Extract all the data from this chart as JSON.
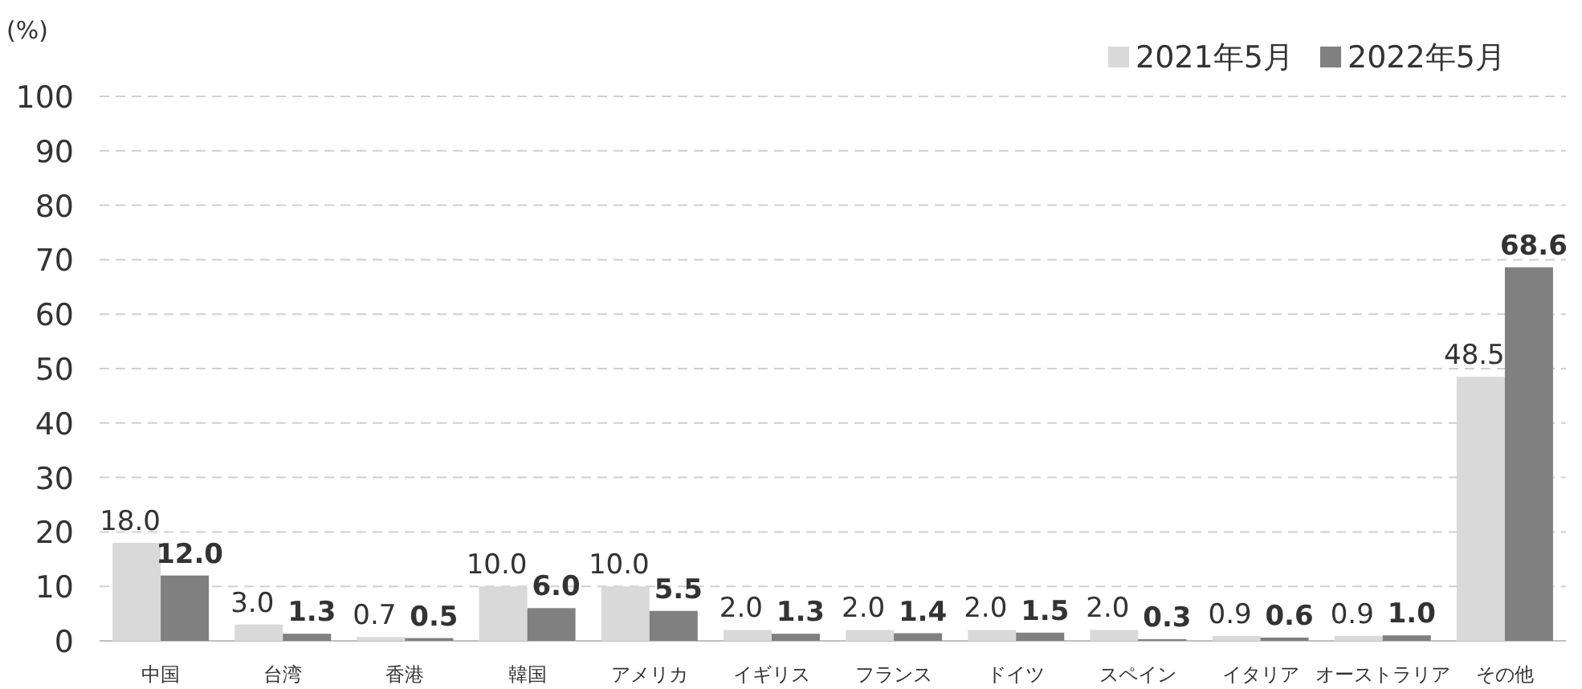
{
  "chart_data": {
    "type": "bar",
    "ylabel": "(%)",
    "categories": [
      "中国",
      "台湾",
      "香港",
      "韓国",
      "アメリカ",
      "イギリス",
      "フランス",
      "ドイツ",
      "スペイン",
      "イタリア",
      "オーストラリア",
      "その他"
    ],
    "series": [
      {
        "name": "2021年5月",
        "color": "#d9d9d9",
        "values": [
          18.0,
          3.0,
          0.7,
          10.0,
          10.0,
          2.0,
          2.0,
          2.0,
          2.0,
          0.9,
          0.9,
          48.5
        ],
        "value_labels": [
          "18.0",
          "3.0",
          "0.7",
          "10.0",
          "10.0",
          "2.0",
          "2.0",
          "2.0",
          "2.0",
          "0.9",
          "0.9",
          "48.5"
        ]
      },
      {
        "name": "2022年5月",
        "color": "#808080",
        "values": [
          12.0,
          1.3,
          0.5,
          6.0,
          5.5,
          1.3,
          1.4,
          1.5,
          0.3,
          0.6,
          1.0,
          68.6
        ],
        "value_labels": [
          "**12.0**",
          "**1.3**",
          "**0.5**",
          "**6.0**",
          "**5.5**",
          "**1.3**",
          "**1.4**",
          "**1.5**",
          "**0.3**",
          "**0.6**",
          "**1.0**",
          "**68.6**"
        ]
      }
    ],
    "ylim": [
      0,
      100
    ],
    "yticks": [
      0,
      10,
      20,
      30,
      40,
      50,
      60,
      70,
      80,
      90,
      100
    ],
    "grid": "y",
    "legend": "top right"
  }
}
